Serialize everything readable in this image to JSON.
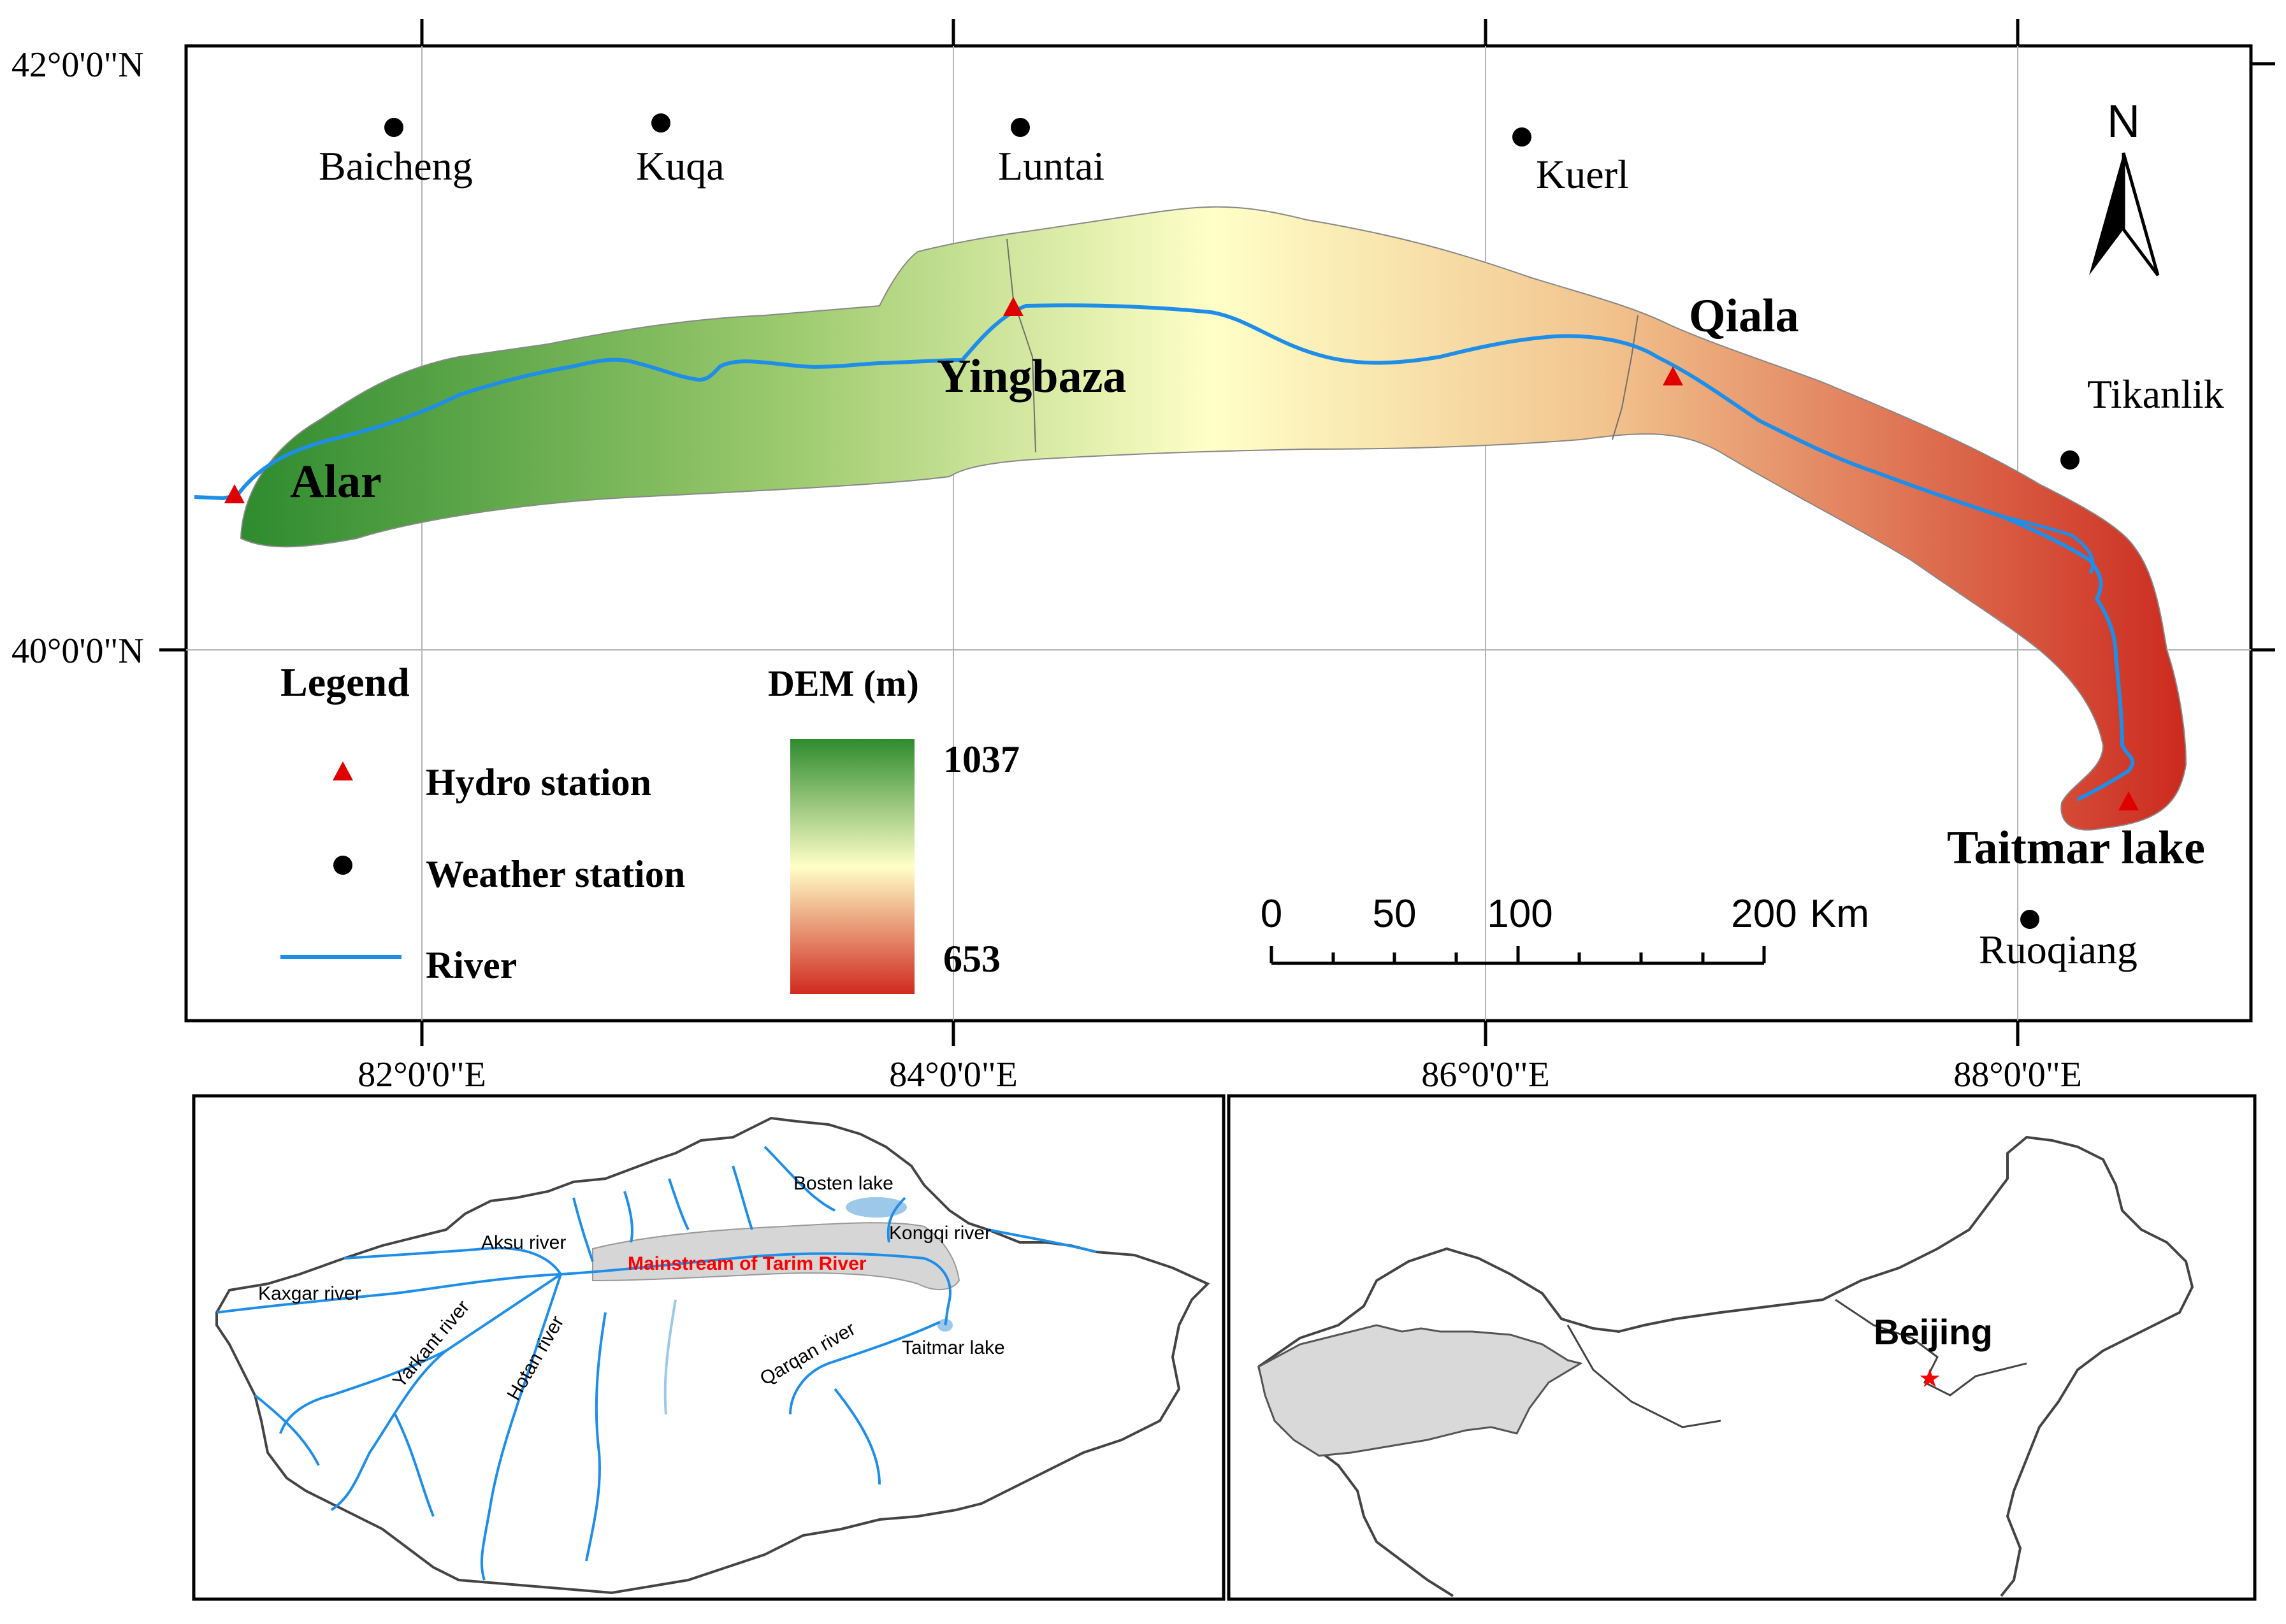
{
  "main_map": {
    "lat_labels": [
      "42°0'0\"N",
      "40°0'0\"N"
    ],
    "lon_labels": [
      "82°0'0\"E",
      "84°0'0\"E",
      "86°0'0\"E",
      "88°0'0\"E"
    ],
    "hydro_stations": [
      "Alar",
      "Yingbaza",
      "Qiala",
      "Taitmar lake"
    ],
    "weather_stations": [
      "Baicheng",
      "Kuqa",
      "Luntai",
      "Kuerl",
      "Tikanlik",
      "Ruoqiang"
    ],
    "north_arrow": "N",
    "legend": {
      "title": "Legend",
      "items": [
        "Hydro station",
        "Weather station",
        "River"
      ]
    },
    "dem": {
      "title": "DEM (m)",
      "max": "1037",
      "min": "653",
      "color_high": "#2e8b2e",
      "color_mid": "#ffffc8",
      "color_low": "#d02a1e"
    },
    "scale_bar": {
      "labels": [
        "0",
        "50",
        "100",
        "200"
      ],
      "unit": "Km"
    },
    "colors": {
      "river": "#1e8ee8",
      "hydro": "#e00000",
      "weather": "#000000"
    }
  },
  "inset_basin": {
    "rivers": [
      "Kaxgar river",
      "Aksu river",
      "Yarkant river",
      "Hotan river",
      "Qarqan river",
      "Kongqi river"
    ],
    "lakes": [
      "Bosten lake",
      "Taitmar lake"
    ],
    "mainstream": "Mainstream of Tarim River",
    "mainstream_color": "#ff0000"
  },
  "inset_china": {
    "city": "Beijing",
    "star_color": "#ff0000"
  }
}
